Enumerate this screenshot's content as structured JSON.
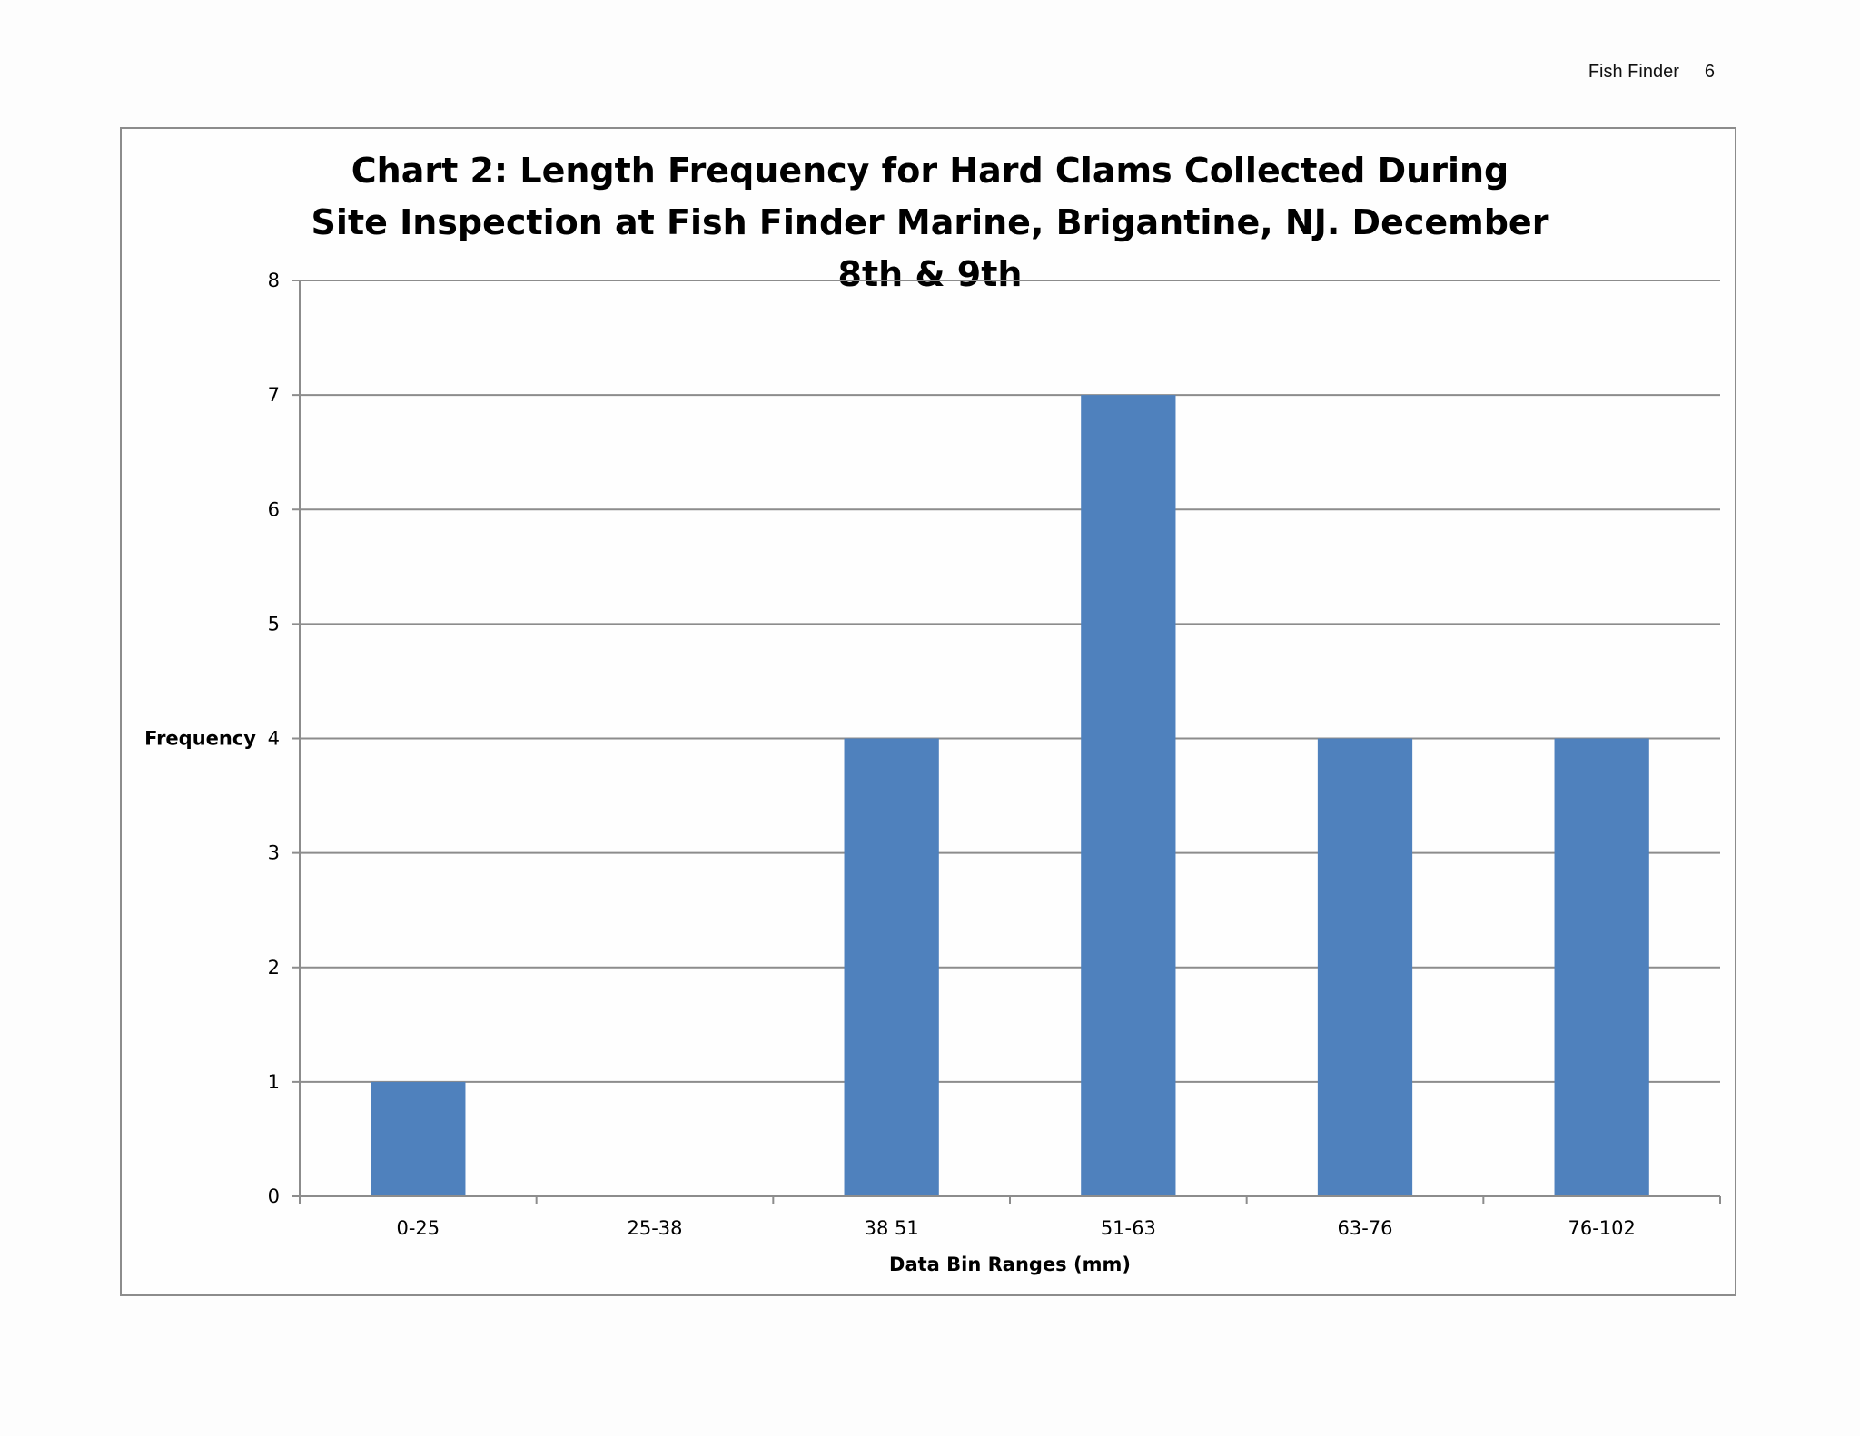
{
  "header": {
    "running_title": "Fish Finder",
    "page_number": "6"
  },
  "chart_data": {
    "type": "bar",
    "title": "Chart 2: Length Frequency for Hard Clams Collected During Site Inspection at Fish Finder Marine, Brigantine, NJ. December 8th & 9th",
    "categories": [
      "0-25",
      "25-38",
      "38 51",
      "51-63",
      "63-76",
      "76-102"
    ],
    "values": [
      1,
      0,
      4,
      7,
      4,
      4
    ],
    "xlabel": "Data Bin Ranges (mm)",
    "ylabel": "Frequency",
    "ylim": [
      0,
      8
    ],
    "yticks": [
      0,
      1,
      2,
      3,
      4,
      5,
      6,
      7,
      8
    ],
    "grid": true,
    "legend": "none",
    "bar_color": "#4f81bd",
    "grid_color": "#8c8c8c"
  }
}
